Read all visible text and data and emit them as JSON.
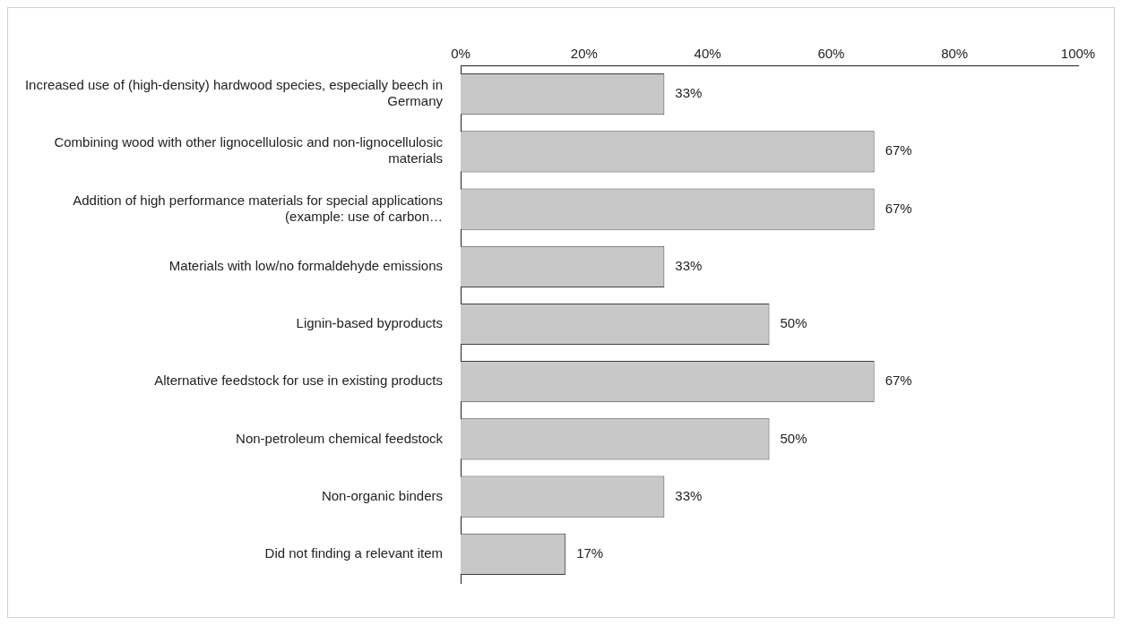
{
  "chart_data": {
    "type": "bar",
    "orientation": "horizontal",
    "categories": [
      "Increased use of (high-density) hardwood species, especially beech in Germany",
      "Combining wood with other lignocellulosic and non-lignocellulosic materials",
      "Addition of high performance materials for special applications (example: use of carbon…",
      "Materials with low/no formaldehyde emissions",
      "Lignin-based byproducts",
      "Alternative feedstock for use in existing products",
      "Non-petroleum chemical feedstock",
      "Non-organic binders",
      "Did not finding a relevant item"
    ],
    "values": [
      33,
      67,
      67,
      33,
      50,
      67,
      50,
      33,
      17
    ],
    "value_labels": [
      "33%",
      "67%",
      "67%",
      "33%",
      "50%",
      "67%",
      "50%",
      "33%",
      "17%"
    ],
    "color": "#c8c8c8",
    "xlim": [
      0,
      100
    ],
    "xticks": [
      {
        "value": 0,
        "label": "0%"
      },
      {
        "value": 20,
        "label": "20%"
      },
      {
        "value": 40,
        "label": "40%"
      },
      {
        "value": 60,
        "label": "60%"
      },
      {
        "value": 80,
        "label": "80%"
      },
      {
        "value": 100,
        "label": "100%"
      }
    ],
    "grid": false,
    "legend": false
  }
}
